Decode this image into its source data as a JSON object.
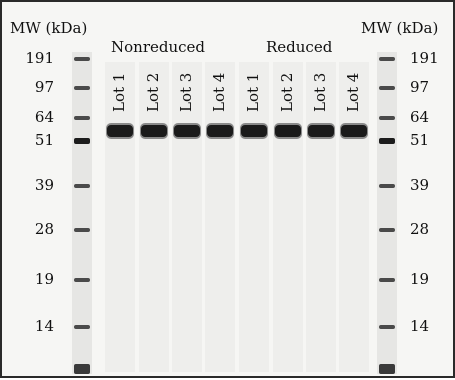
{
  "figure": {
    "mw_label_left": "MW (kDa)",
    "mw_label_right": "MW (kDa)",
    "groups": {
      "nonreduced": "Nonreduced",
      "reduced": "Reduced"
    },
    "lanes": [
      {
        "label": "Lot 1"
      },
      {
        "label": "Lot 2"
      },
      {
        "label": "Lot 3"
      },
      {
        "label": "Lot 4"
      },
      {
        "label": "Lot 1"
      },
      {
        "label": "Lot 2"
      },
      {
        "label": "Lot 3"
      },
      {
        "label": "Lot 4"
      }
    ],
    "markers": [
      "191",
      "97",
      "64",
      "51",
      "39",
      "28",
      "19",
      "14"
    ],
    "colors": {
      "gel_background": "#f6f6f4",
      "band": "#1a1a1a",
      "border": "#2a2a2a"
    }
  }
}
